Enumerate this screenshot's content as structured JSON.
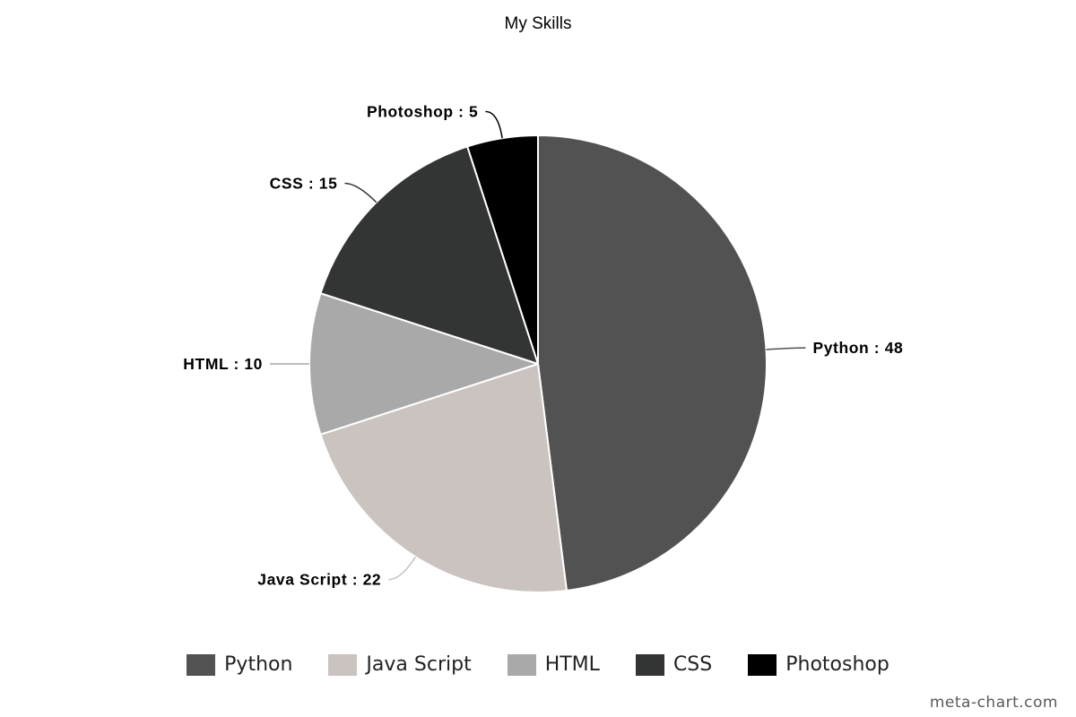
{
  "chart_data": {
    "type": "pie",
    "title": "My Skills",
    "categories": [
      "Python",
      "Java Script",
      "HTML",
      "CSS",
      "Photoshop"
    ],
    "values": [
      48,
      22,
      10,
      15,
      5
    ],
    "colors": [
      "#525252",
      "#cac3c0",
      "#a9a9a9",
      "#333434",
      "#000000"
    ],
    "data_labels": [
      "Python : 48",
      "Java Script : 22",
      "HTML : 10",
      "CSS : 15",
      "Photoshop : 5"
    ],
    "start": "12 o'clock",
    "direction": "clockwise",
    "legend_position": "bottom"
  },
  "watermark": "meta-chart.com"
}
